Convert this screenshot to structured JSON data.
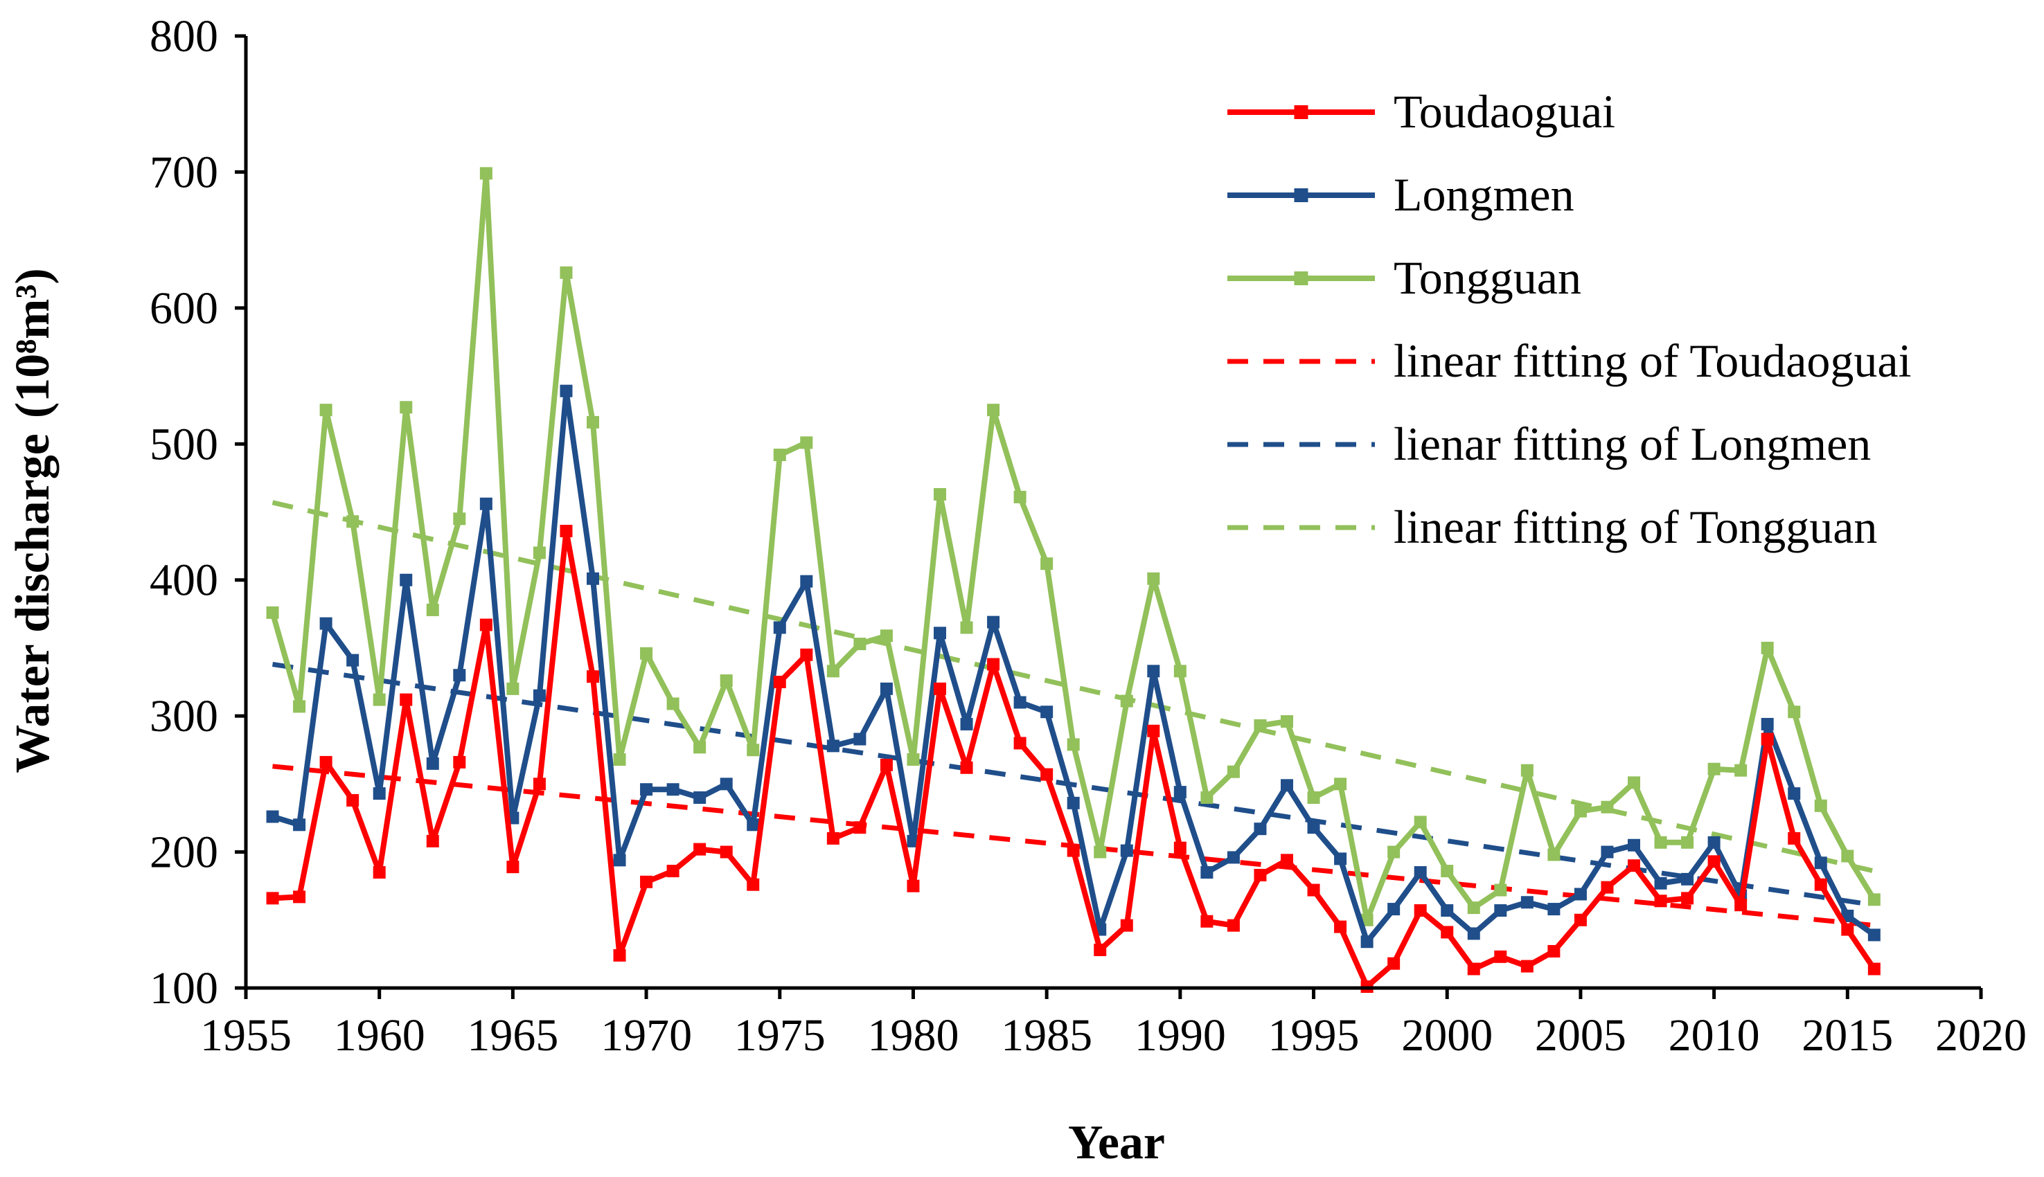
{
  "chart_data": {
    "type": "line",
    "title": "",
    "xlabel": "Year",
    "ylabel": "Water discharge",
    "ylabel_unit": "(10⁸m³)",
    "xlim": [
      1955,
      2020
    ],
    "ylim": [
      100,
      800
    ],
    "xticks": [
      "1955",
      "1960",
      "1965",
      "1970",
      "1975",
      "1980",
      "1985",
      "1990",
      "1995",
      "2000",
      "2005",
      "2010",
      "2015",
      "2020"
    ],
    "yticks": [
      "100",
      "200",
      "300",
      "400",
      "500",
      "600",
      "700",
      "800"
    ],
    "grid": false,
    "legend_position": "top-right",
    "x": [
      1956,
      1957,
      1958,
      1959,
      1960,
      1961,
      1962,
      1963,
      1964,
      1965,
      1966,
      1967,
      1968,
      1969,
      1970,
      1971,
      1972,
      1973,
      1974,
      1975,
      1976,
      1977,
      1978,
      1979,
      1980,
      1981,
      1982,
      1983,
      1984,
      1985,
      1986,
      1987,
      1988,
      1989,
      1990,
      1991,
      1992,
      1993,
      1994,
      1995,
      1996,
      1997,
      1998,
      1999,
      2000,
      2001,
      2002,
      2003,
      2004,
      2005,
      2006,
      2007,
      2008,
      2009,
      2010,
      2011,
      2012,
      2013,
      2014,
      2015,
      2016
    ],
    "series": [
      {
        "name": "Toudaoguai",
        "color": "#ff0000",
        "style": "solid",
        "values": [
          166,
          167,
          266,
          238,
          185,
          312,
          208,
          266,
          367,
          189,
          250,
          436,
          329,
          124,
          178,
          186,
          202,
          200,
          176,
          325,
          345,
          210,
          218,
          264,
          175,
          320,
          262,
          338,
          280,
          257,
          201,
          128,
          146,
          289,
          203,
          149,
          146,
          183,
          194,
          172,
          145,
          101,
          118,
          157,
          141,
          114,
          123,
          116,
          127,
          150,
          174,
          190,
          164,
          166,
          193,
          161,
          283,
          210,
          176,
          143,
          114
        ]
      },
      {
        "name": "Longmen",
        "color": "#1f4e8a",
        "style": "solid",
        "values": [
          226,
          220,
          368,
          341,
          243,
          400,
          265,
          330,
          456,
          225,
          315,
          539,
          401,
          194,
          246,
          246,
          240,
          250,
          220,
          365,
          399,
          278,
          283,
          320,
          208,
          361,
          294,
          369,
          310,
          303,
          236,
          143,
          201,
          333,
          244,
          185,
          196,
          217,
          249,
          218,
          195,
          134,
          158,
          185,
          157,
          140,
          157,
          163,
          158,
          169,
          200,
          205,
          177,
          180,
          207,
          168,
          294,
          243,
          192,
          153,
          139
        ]
      },
      {
        "name": "Tongguan",
        "color": "#92c05a",
        "style": "solid",
        "values": [
          376,
          307,
          525,
          443,
          312,
          527,
          378,
          445,
          699,
          320,
          420,
          626,
          516,
          268,
          346,
          309,
          277,
          326,
          275,
          492,
          501,
          333,
          353,
          359,
          268,
          463,
          365,
          525,
          461,
          412,
          279,
          200,
          311,
          401,
          333,
          240,
          259,
          293,
          296,
          240,
          250,
          150,
          200,
          222,
          186,
          159,
          172,
          260,
          198,
          230,
          233,
          251,
          207,
          207,
          261,
          260,
          350,
          303,
          234,
          197,
          165
        ]
      },
      {
        "name": "linear fitting of Toudaoguai",
        "color": "#ff0000",
        "style": "dashed",
        "x": [
          1956,
          2016
        ],
        "values": [
          263,
          146
        ]
      },
      {
        "name": "lienar fitting of Longmen",
        "color": "#1f4e8a",
        "style": "dashed",
        "x": [
          1956,
          2016
        ],
        "values": [
          338,
          161
        ]
      },
      {
        "name": "linear fitting of Tongguan",
        "color": "#92c05a",
        "style": "dashed",
        "x": [
          1956,
          2016
        ],
        "values": [
          457,
          186
        ]
      }
    ]
  }
}
